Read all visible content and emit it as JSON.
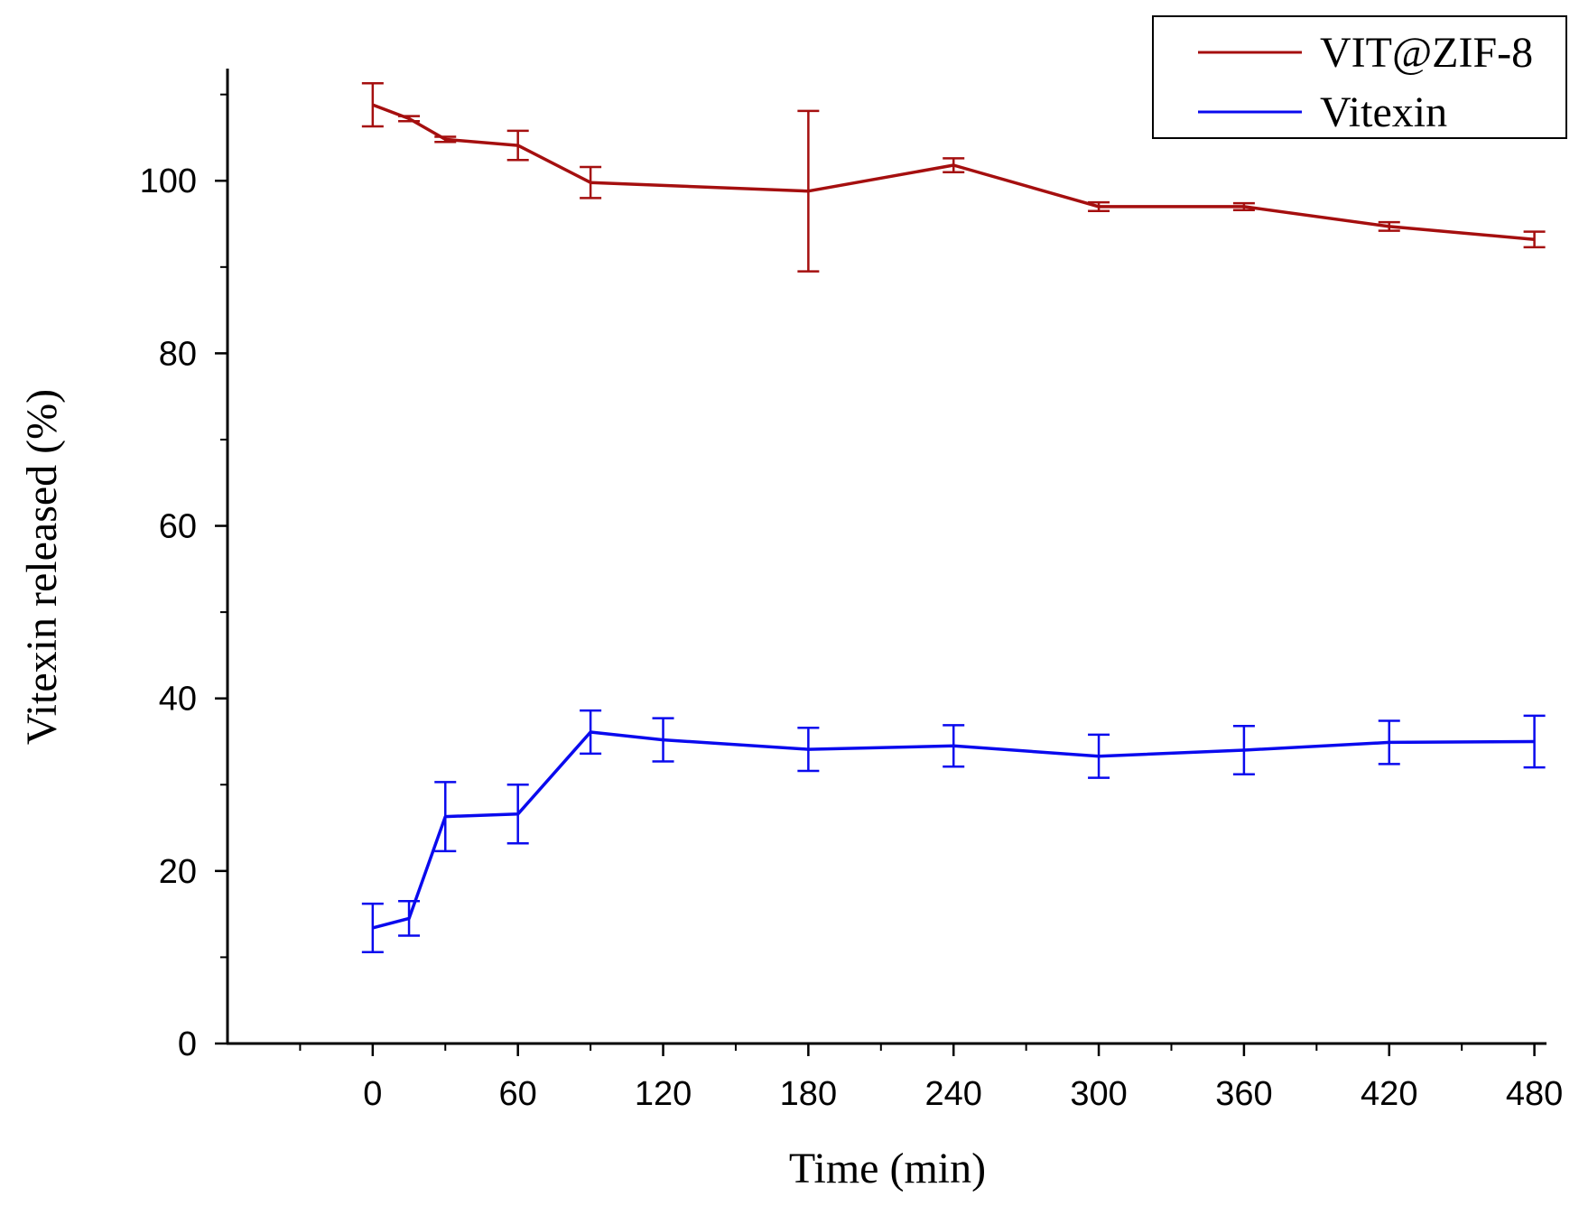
{
  "chart_data": {
    "type": "line",
    "title": "",
    "xlabel": "Time (min)",
    "ylabel": "Vitexin released  (%)",
    "xlim": [
      -60,
      485
    ],
    "ylim": [
      0,
      113
    ],
    "x_ticks": [
      0,
      60,
      120,
      180,
      240,
      300,
      360,
      420,
      480
    ],
    "x_tick_labels": [
      "0",
      "60",
      "120",
      "180",
      "240",
      "300",
      "360",
      "420",
      "480"
    ],
    "x_minor_ticks": [
      -30,
      30,
      90,
      150,
      210,
      270,
      330,
      390,
      450
    ],
    "y_ticks": [
      0,
      20,
      40,
      60,
      80,
      100
    ],
    "y_tick_labels": [
      "0",
      "20",
      "40",
      "60",
      "80",
      "100"
    ],
    "y_minor_ticks": [
      10,
      30,
      50,
      70,
      90,
      110
    ],
    "grid": false,
    "legend_position": "top-right",
    "series": [
      {
        "name": "VIT@ZIF-8",
        "color": "#a50f0f",
        "x": [
          0,
          15,
          30,
          60,
          90,
          180,
          240,
          300,
          360,
          420,
          480
        ],
        "y": [
          108.8,
          107.2,
          104.8,
          104.1,
          99.8,
          98.8,
          101.8,
          97.0,
          97.0,
          94.7,
          93.2
        ],
        "err": [
          2.5,
          0.3,
          0.3,
          1.7,
          1.8,
          9.3,
          0.8,
          0.5,
          0.4,
          0.5,
          0.9
        ]
      },
      {
        "name": "Vitexin",
        "color": "#0a0aee",
        "x": [
          0,
          15,
          30,
          60,
          90,
          120,
          180,
          240,
          300,
          360,
          420,
          480
        ],
        "y": [
          13.4,
          14.5,
          26.3,
          26.6,
          36.1,
          35.2,
          34.1,
          34.5,
          33.3,
          34.0,
          34.9,
          35.0
        ],
        "err": [
          2.8,
          2.0,
          4.0,
          3.4,
          2.5,
          2.5,
          2.5,
          2.4,
          2.5,
          2.8,
          2.5,
          3.0
        ]
      }
    ]
  }
}
